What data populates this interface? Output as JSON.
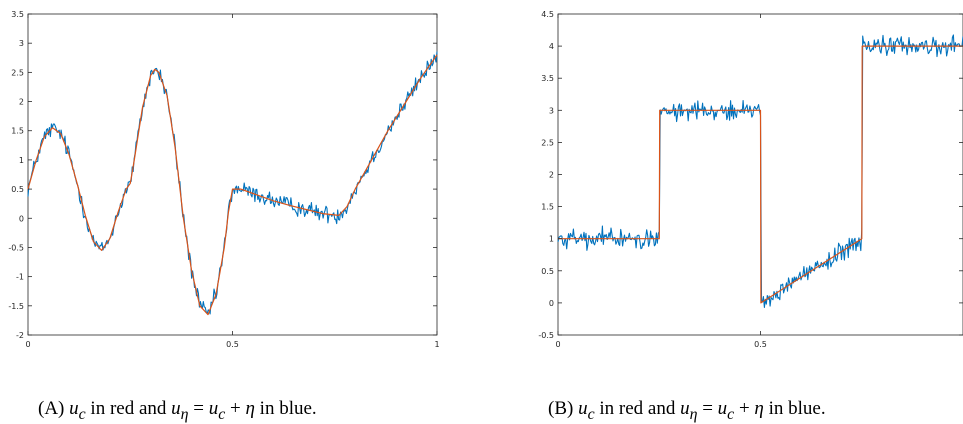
{
  "figure": {
    "panels": [
      {
        "caption": {
          "tag": "(A)",
          "part1": "u",
          "sub1": "c",
          "part2": " in red and ",
          "part3": "u",
          "sub3": "η",
          "part4": " = ",
          "part5": "u",
          "sub5": "c",
          "part6": " + ",
          "part7": "η",
          "part8": " in blue."
        }
      },
      {
        "caption": {
          "tag": "(B)",
          "part1": "u",
          "sub1": "c",
          "part2": " in red and ",
          "part3": "u",
          "sub3": "η",
          "part4": " = ",
          "part5": "u",
          "sub5": "c",
          "part6": " + ",
          "part7": "η",
          "part8": " in blue."
        }
      }
    ]
  },
  "colors": {
    "clean": "#d95319",
    "noisy": "#0072bd",
    "axis": "#262626"
  },
  "chart_data": [
    {
      "type": "line",
      "xlim": [
        0,
        1
      ],
      "ylim": [
        -2,
        3.5
      ],
      "xticks": [
        0,
        0.5,
        1
      ],
      "xtick_labels": [
        "0",
        "0.5",
        "1"
      ],
      "yticks": [
        -2,
        -1.5,
        -1,
        -0.5,
        0,
        0.5,
        1,
        1.5,
        2,
        2.5,
        3,
        3.5
      ],
      "ytick_labels": [
        "-2",
        "-1.5",
        "-1",
        "-0.5",
        "0",
        "0.5",
        "1",
        "1.5",
        "2",
        "2.5",
        "3",
        "3.5"
      ],
      "series": [
        {
          "color": "red",
          "x": [
            0,
            0.02,
            0.04,
            0.06,
            0.08,
            0.1,
            0.12,
            0.14,
            0.16,
            0.18,
            0.2,
            0.22,
            0.24,
            0.25,
            0.26,
            0.28,
            0.3,
            0.31,
            0.32,
            0.34,
            0.36,
            0.38,
            0.4,
            0.42,
            0.44,
            0.46,
            0.48,
            0.49,
            0.5,
            0.52,
            0.54,
            0.56,
            0.6,
            0.64,
            0.68,
            0.72,
            0.76,
            0.78,
            0.8,
            0.84,
            0.88,
            0.92,
            0.96,
            1.0
          ],
          "y": [
            0.5,
            1.0,
            1.4,
            1.55,
            1.45,
            1.1,
            0.6,
            0.05,
            -0.4,
            -0.55,
            -0.35,
            0.1,
            0.5,
            0.6,
            1.0,
            1.9,
            2.45,
            2.55,
            2.5,
            2.1,
            1.2,
            0.0,
            -0.9,
            -1.5,
            -1.65,
            -1.3,
            -0.5,
            0.1,
            0.5,
            0.5,
            0.45,
            0.4,
            0.3,
            0.22,
            0.15,
            0.08,
            0.05,
            0.2,
            0.5,
            1.0,
            1.5,
            1.95,
            2.4,
            2.8
          ]
        },
        {
          "color": "blue",
          "x": [
            0,
            0.02,
            0.04,
            0.06,
            0.08,
            0.1,
            0.12,
            0.14,
            0.16,
            0.18,
            0.2,
            0.22,
            0.24,
            0.25,
            0.26,
            0.28,
            0.3,
            0.31,
            0.32,
            0.34,
            0.36,
            0.38,
            0.4,
            0.42,
            0.44,
            0.46,
            0.48,
            0.49,
            0.5,
            0.52,
            0.54,
            0.56,
            0.6,
            0.64,
            0.68,
            0.72,
            0.76,
            0.78,
            0.8,
            0.84,
            0.88,
            0.92,
            0.96,
            1.0
          ],
          "y": [
            0.5,
            1.0,
            1.4,
            1.55,
            1.45,
            1.1,
            0.6,
            0.05,
            -0.4,
            -0.55,
            -0.35,
            0.1,
            0.5,
            0.6,
            1.0,
            1.9,
            2.45,
            2.55,
            2.5,
            2.1,
            1.2,
            0.0,
            -0.9,
            -1.5,
            -1.65,
            -1.3,
            -0.5,
            0.1,
            0.5,
            0.5,
            0.45,
            0.4,
            0.3,
            0.22,
            0.15,
            0.08,
            0.05,
            0.2,
            0.5,
            1.0,
            1.5,
            1.95,
            2.4,
            2.8
          ],
          "noise_amplitude": 0.1
        }
      ]
    },
    {
      "type": "line",
      "xlim": [
        0,
        1
      ],
      "ylim": [
        -0.5,
        4.5
      ],
      "xticks": [
        0,
        0.5
      ],
      "xtick_labels": [
        "0",
        "0.5"
      ],
      "yticks": [
        -0.5,
        0,
        0.5,
        1,
        1.5,
        2,
        2.5,
        3,
        3.5,
        4,
        4.5
      ],
      "ytick_labels": [
        "-0.5",
        "0",
        "0.5",
        "1",
        "1.5",
        "2",
        "2.5",
        "3",
        "3.5",
        "4",
        "4.5"
      ],
      "series": [
        {
          "color": "red",
          "x": [
            0,
            0.25,
            0.251,
            0.5,
            0.501,
            0.75,
            0.751,
            1.0
          ],
          "y": [
            1,
            1,
            3,
            3,
            0,
            1,
            4,
            4
          ]
        },
        {
          "color": "blue",
          "x": [
            0,
            0.25,
            0.251,
            0.5,
            0.501,
            0.75,
            0.751,
            1.0
          ],
          "y": [
            1,
            1,
            3,
            3,
            0,
            1,
            4,
            4
          ],
          "noise_amplitude": 0.1
        }
      ]
    }
  ]
}
